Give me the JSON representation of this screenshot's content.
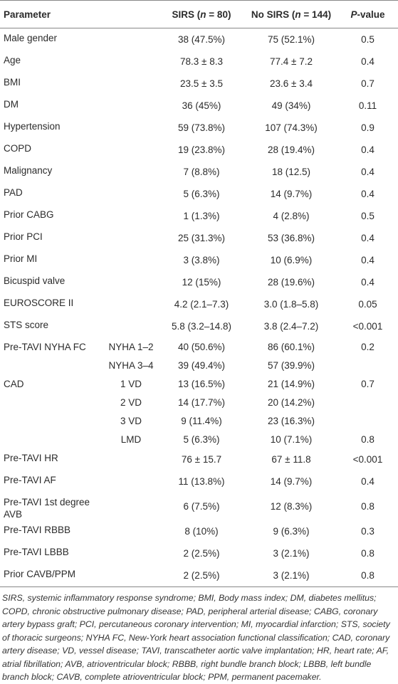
{
  "table": {
    "header": [
      [
        {
          "text": "Parameter"
        }
      ],
      [],
      [
        {
          "text": "SIRS ("
        },
        {
          "text": "n",
          "italic": true
        },
        {
          "text": " = 80)"
        }
      ],
      [
        {
          "text": "No SIRS ("
        },
        {
          "text": "n",
          "italic": true
        },
        {
          "text": " = 144)"
        }
      ],
      [
        {
          "text": "P",
          "italic": true
        },
        {
          "text": "-value"
        }
      ]
    ],
    "rows": [
      [
        "Male gender",
        null,
        "38 (47.5%)",
        "75 (52.1%)",
        "0.5"
      ],
      [
        "Age",
        null,
        "78.3 ± 8.3",
        "77.4 ± 7.2",
        "0.4"
      ],
      [
        "BMI",
        null,
        "23.5 ± 3.5",
        "23.6 ± 3.4",
        "0.7"
      ],
      [
        "DM",
        null,
        "36 (45%)",
        "49 (34%)",
        "0.11"
      ],
      [
        "Hypertension",
        null,
        "59 (73.8%)",
        "107 (74.3%)",
        "0.9"
      ],
      [
        "COPD",
        null,
        "19 (23.8%)",
        "28 (19.4%)",
        "0.4"
      ],
      [
        "Malignancy",
        null,
        "7 (8.8%)",
        "18 (12.5)",
        "0.4"
      ],
      [
        "PAD",
        null,
        "5 (6.3%)",
        "14 (9.7%)",
        "0.4"
      ],
      [
        "Prior CABG",
        null,
        "1 (1.3%)",
        "4 (2.8%)",
        "0.5"
      ],
      [
        "Prior PCI",
        null,
        "25 (31.3%)",
        "53 (36.8%)",
        "0.4"
      ],
      [
        "Prior MI",
        null,
        "3 (3.8%)",
        "10 (6.9%)",
        "0.4"
      ],
      [
        "Bicuspid valve",
        null,
        "12 (15%)",
        "28 (19.6%)",
        "0.4"
      ],
      [
        "EUROSCORE II",
        null,
        "4.2 (2.1–7.3)",
        "3.0 (1.8–5.8)",
        "0.05"
      ],
      [
        "STS score",
        null,
        "5.8 (3.2–14.8)",
        "3.8 (2.4–7.2)",
        "<0.001"
      ],
      [
        "Pre-TAVI NYHA FC",
        "NYHA 1–2",
        "40 (50.6%)",
        "86 (60.1%)",
        "0.2"
      ],
      [
        null,
        "NYHA 3–4",
        "39 (49.4%)",
        "57 (39.9%)",
        null
      ],
      [
        "CAD",
        "1 VD",
        "13 (16.5%)",
        "21 (14.9%)",
        "0.7"
      ],
      [
        null,
        "2 VD",
        "14 (17.7%)",
        "20 (14.2%)",
        null
      ],
      [
        null,
        "3 VD",
        "9 (11.4%)",
        "23 (16.3%)",
        null
      ],
      [
        null,
        "LMD",
        "5 (6.3%)",
        "10 (7.1%)",
        "0.8"
      ],
      [
        "Pre-TAVI HR",
        null,
        "76 ± 15.7",
        "67 ± 11.8",
        "<0.001"
      ],
      [
        "Pre-TAVI AF",
        null,
        "11 (13.8%)",
        "14 (9.7%)",
        "0.4"
      ],
      [
        "Pre-TAVI 1st degree AVB",
        null,
        "6 (7.5%)",
        "12 (8.3%)",
        "0.8"
      ],
      [
        "Pre-TAVI RBBB",
        null,
        "8 (10%)",
        "9 (6.3%)",
        "0.3"
      ],
      [
        "Pre-TAVI LBBB",
        null,
        "2 (2.5%)",
        "3 (2.1%)",
        "0.8"
      ],
      [
        "Prior CAVB/PPM",
        null,
        "2 (2.5%)",
        "3 (2.1%)",
        "0.8"
      ]
    ]
  },
  "footnote": "SIRS, systemic inflammatory response syndrome; BMI, Body mass index; DM, diabetes mellitus; COPD, chronic obstructive pulmonary disease; PAD, peripheral arterial disease; CABG, coronary artery bypass graft; PCI, percutaneous coronary intervention; MI, myocardial infarction; STS, society of thoracic surgeons; NYHA FC, New-York heart association functional classification; CAD, coronary artery disease; VD, vessel disease; TAVI, transcatheter aortic valve implantation; HR, heart rate; AF, atrial fibrillation; AVB, atrioventricular block; RBBB, right bundle branch block; LBBB, left bundle branch block; CAVB, complete atrioventricular block; PPM, permanent pacemaker."
}
